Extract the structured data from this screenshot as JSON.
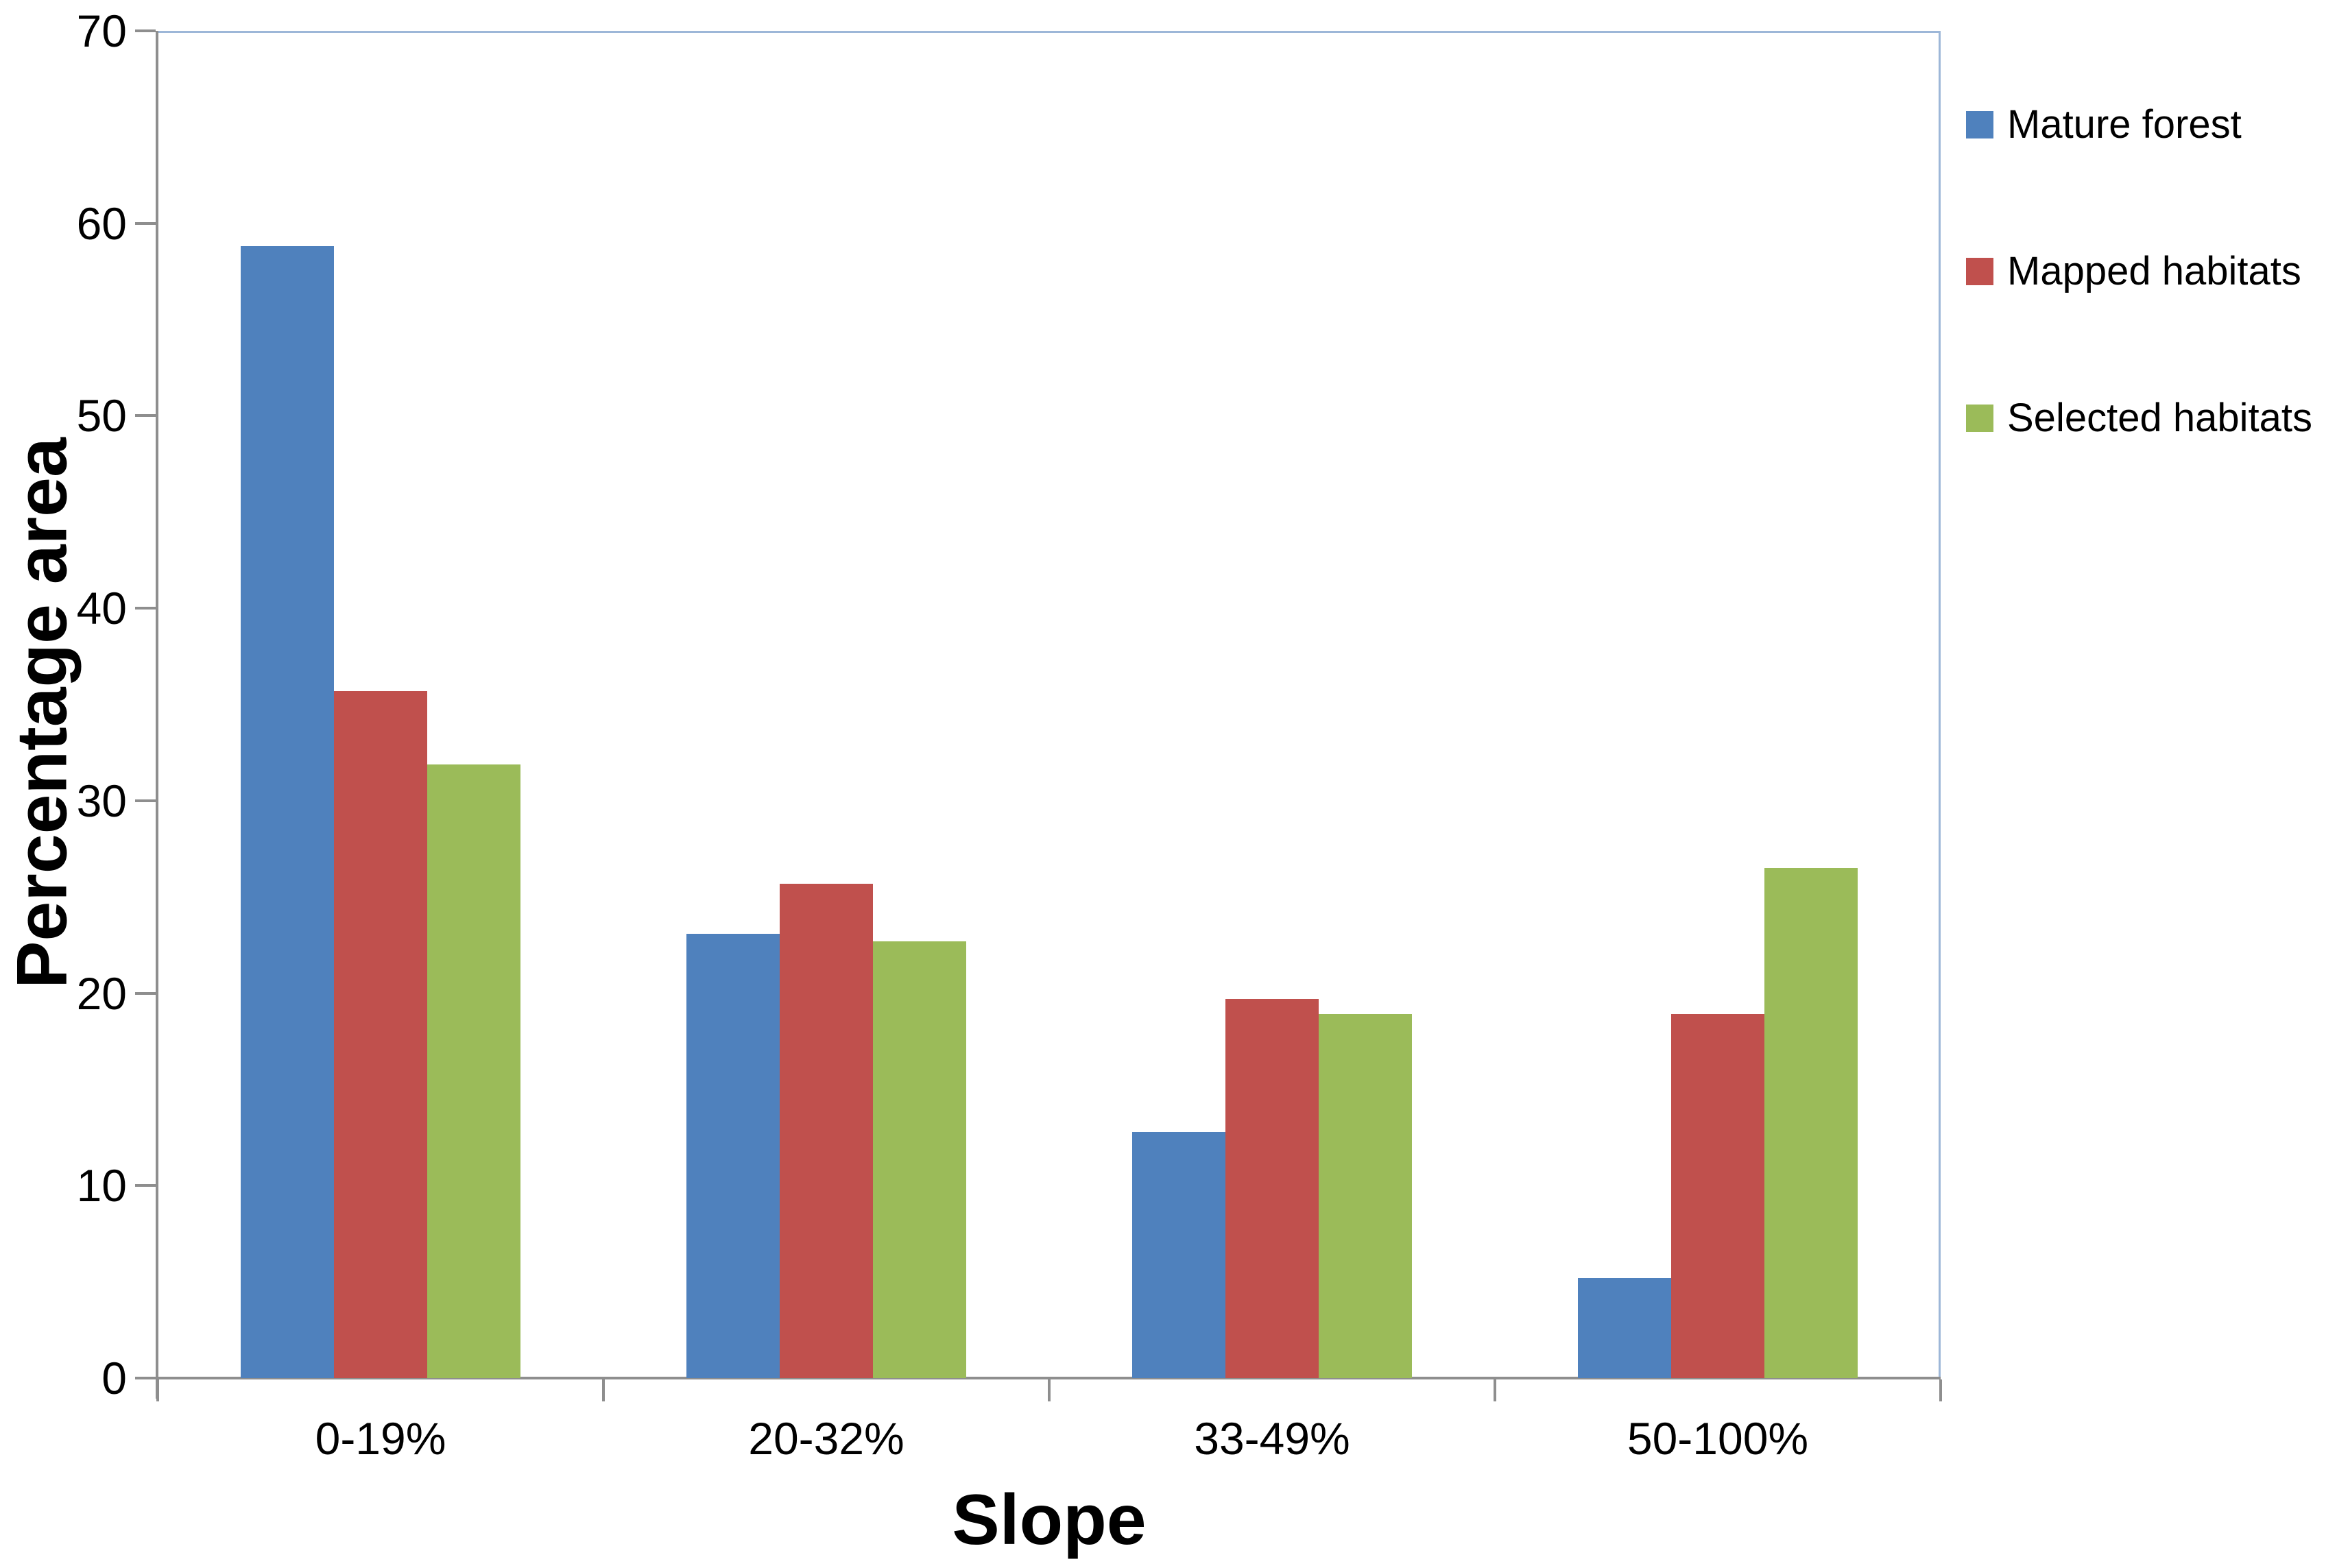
{
  "chart_data": {
    "type": "bar",
    "title": "",
    "categories": [
      "0-19%",
      "20-32%",
      "33-49%",
      "50-100%"
    ],
    "series": [
      {
        "name": "Mature forest",
        "color": "#4F81BD",
        "values": [
          58.8,
          23.1,
          12.8,
          5.2
        ]
      },
      {
        "name": "Mapped habitats",
        "color": "#C0504D",
        "values": [
          35.7,
          25.7,
          19.7,
          18.9
        ]
      },
      {
        "name": "Selected habitats",
        "color": "#9BBB59",
        "values": [
          31.9,
          22.7,
          18.9,
          26.5
        ]
      }
    ],
    "xlabel": "Slope",
    "ylabel": "Percentage area",
    "ylim": [
      0,
      70
    ],
    "ytick_step": 10,
    "y_tick_labels": [
      "0",
      "10",
      "20",
      "30",
      "40",
      "50",
      "60",
      "70"
    ],
    "grid": false,
    "legend_position": "right-top",
    "style": {
      "axis_color": "#8E8E8E",
      "plot_border_color": "#9DB7D8",
      "text_color": "#000000",
      "background": "#FFFFFF"
    }
  }
}
